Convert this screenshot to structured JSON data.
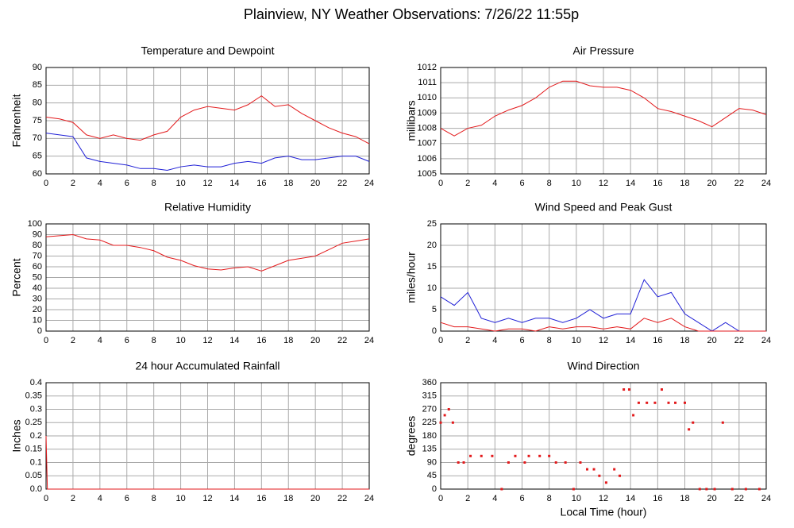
{
  "title": "Plainview, NY Weather Observations: 7/26/22 11:55p",
  "chart_data": [
    {
      "type": "line",
      "title": "Temperature and Dewpoint",
      "y_label": "Fahrenheit",
      "grid": true,
      "x": [
        0,
        1,
        2,
        3,
        4,
        5,
        6,
        7,
        8,
        9,
        10,
        11,
        12,
        13,
        14,
        15,
        16,
        17,
        18,
        19,
        20,
        21,
        22,
        23,
        24
      ],
      "xlim": [
        0,
        24
      ],
      "xticks": [
        0,
        2,
        4,
        6,
        8,
        10,
        12,
        14,
        16,
        18,
        20,
        22,
        24
      ],
      "ylim": [
        60,
        90
      ],
      "yticks": [
        60,
        65,
        70,
        75,
        80,
        85,
        90
      ],
      "series": [
        {
          "color": "#e31a1c",
          "values": [
            76,
            75.5,
            74.5,
            71,
            70,
            71,
            70,
            69.5,
            71,
            72,
            76,
            78,
            79,
            78.5,
            78,
            79.5,
            82,
            79,
            79.5,
            77,
            75,
            73,
            71.5,
            70.5,
            68.5
          ]
        },
        {
          "color": "#1f1fd6",
          "values": [
            71.5,
            71,
            70.5,
            64.5,
            63.5,
            63,
            62.5,
            61.5,
            61.5,
            61,
            62,
            62.5,
            62,
            62,
            63,
            63.5,
            63,
            64.5,
            65,
            64,
            64,
            64.5,
            65,
            65,
            63.5
          ]
        }
      ]
    },
    {
      "type": "line",
      "title": "Air Pressure",
      "y_label": "millibars",
      "grid": true,
      "x": [
        0,
        1,
        2,
        3,
        4,
        5,
        6,
        7,
        8,
        9,
        10,
        11,
        12,
        13,
        14,
        15,
        16,
        17,
        18,
        19,
        20,
        21,
        22,
        23,
        24
      ],
      "xlim": [
        0,
        24
      ],
      "xticks": [
        0,
        2,
        4,
        6,
        8,
        10,
        12,
        14,
        16,
        18,
        20,
        22,
        24
      ],
      "ylim": [
        1005,
        1012
      ],
      "yticks": [
        1005,
        1006,
        1007,
        1008,
        1009,
        1010,
        1011,
        1012
      ],
      "series": [
        {
          "color": "#e31a1c",
          "values": [
            1008,
            1007.5,
            1008,
            1008.2,
            1008.8,
            1009.2,
            1009.5,
            1010,
            1010.7,
            1011.1,
            1011.1,
            1010.8,
            1010.7,
            1010.7,
            1010.5,
            1010,
            1009.3,
            1009.1,
            1008.8,
            1008.5,
            1008.1,
            1008.7,
            1009.3,
            1009.2,
            1008.9
          ]
        }
      ]
    },
    {
      "type": "line",
      "title": "Relative Humidity",
      "y_label": "Percent",
      "grid": true,
      "x": [
        0,
        1,
        2,
        3,
        4,
        5,
        6,
        7,
        8,
        9,
        10,
        11,
        12,
        13,
        14,
        15,
        16,
        17,
        18,
        19,
        20,
        21,
        22,
        23,
        24
      ],
      "xlim": [
        0,
        24
      ],
      "xticks": [
        0,
        2,
        4,
        6,
        8,
        10,
        12,
        14,
        16,
        18,
        20,
        22,
        24
      ],
      "ylim": [
        0,
        100
      ],
      "yticks": [
        0,
        10,
        20,
        30,
        40,
        50,
        60,
        70,
        80,
        90,
        100
      ],
      "series": [
        {
          "color": "#e31a1c",
          "values": [
            88,
            89,
            90,
            86,
            85,
            80,
            80,
            78,
            75,
            69,
            66,
            61,
            58,
            57,
            59,
            60,
            56,
            61,
            66,
            68,
            70,
            76,
            82,
            84,
            86
          ]
        }
      ]
    },
    {
      "type": "line",
      "title": "Wind Speed and Peak Gust",
      "y_label": "miles/hour",
      "grid": true,
      "x": [
        0,
        1,
        2,
        3,
        4,
        5,
        6,
        7,
        8,
        9,
        10,
        11,
        12,
        13,
        14,
        15,
        16,
        17,
        18,
        19,
        20,
        21,
        22,
        23,
        24
      ],
      "xlim": [
        0,
        24
      ],
      "xticks": [
        0,
        2,
        4,
        6,
        8,
        10,
        12,
        14,
        16,
        18,
        20,
        22,
        24
      ],
      "ylim": [
        0,
        25
      ],
      "yticks": [
        0,
        5,
        10,
        15,
        20,
        25
      ],
      "series": [
        {
          "color": "#1f1fd6",
          "values": [
            8,
            6,
            9,
            3,
            2,
            3,
            2,
            3,
            3,
            2,
            3,
            5,
            3,
            4,
            4,
            12,
            8,
            9,
            4,
            2,
            0,
            2,
            0,
            0,
            0
          ]
        },
        {
          "color": "#e31a1c",
          "values": [
            2,
            1,
            1,
            0.5,
            0,
            0.5,
            0.5,
            0,
            1,
            0.5,
            1,
            1,
            0.5,
            1,
            0.5,
            3,
            2,
            3,
            1,
            0,
            0,
            0,
            0,
            0,
            0
          ]
        }
      ]
    },
    {
      "type": "line",
      "title": "24 hour Accumulated Rainfall",
      "y_label": "Inches",
      "grid": true,
      "x": [
        0,
        0.1,
        24
      ],
      "xlim": [
        0,
        24
      ],
      "xticks": [
        0,
        2,
        4,
        6,
        8,
        10,
        12,
        14,
        16,
        18,
        20,
        22,
        24
      ],
      "ylim": [
        0,
        0.4
      ],
      "yticks": [
        {
          "value": 0,
          "label": "0.0"
        },
        0.05,
        0.1,
        0.15,
        0.2,
        0.25,
        0.3,
        0.35,
        0.4
      ],
      "series": [
        {
          "color": "#e31a1c",
          "values": [
            0.2,
            0,
            0
          ]
        }
      ]
    },
    {
      "type": "scatter",
      "title": "Wind Direction",
      "y_label": "degrees",
      "x_label": "Local Time (hour)",
      "grid": true,
      "x": [
        0,
        0.3,
        0.6,
        0.9,
        1.3,
        1.7,
        2.2,
        3,
        3.8,
        4.5,
        5,
        5.5,
        6.2,
        6.5,
        7.3,
        8,
        8.5,
        9.2,
        9.8,
        10.3,
        10.8,
        11.3,
        11.7,
        12.2,
        12.8,
        13.2,
        13.5,
        13.9,
        14.2,
        14.6,
        15.2,
        15.8,
        16.3,
        16.8,
        17.3,
        18,
        18.3,
        18.6,
        19.1,
        19.6,
        20.2,
        20.8,
        21.5,
        22.5,
        23.5
      ],
      "values": [
        225,
        250,
        270,
        225,
        90,
        90,
        112,
        112,
        112,
        0,
        90,
        112,
        90,
        112,
        112,
        112,
        90,
        90,
        0,
        90,
        67,
        67,
        45,
        22,
        67,
        45,
        337,
        337,
        250,
        292,
        292,
        292,
        337,
        292,
        292,
        292,
        202,
        225,
        0,
        0,
        0,
        225,
        0,
        0,
        0
      ],
      "color": "#e31a1c",
      "xlim": [
        0,
        24
      ],
      "xticks": [
        0,
        2,
        4,
        6,
        8,
        10,
        12,
        14,
        16,
        18,
        20,
        22,
        24
      ],
      "ylim": [
        0,
        360
      ],
      "yticks": [
        0,
        45,
        90,
        135,
        180,
        225,
        270,
        315,
        360
      ]
    }
  ]
}
